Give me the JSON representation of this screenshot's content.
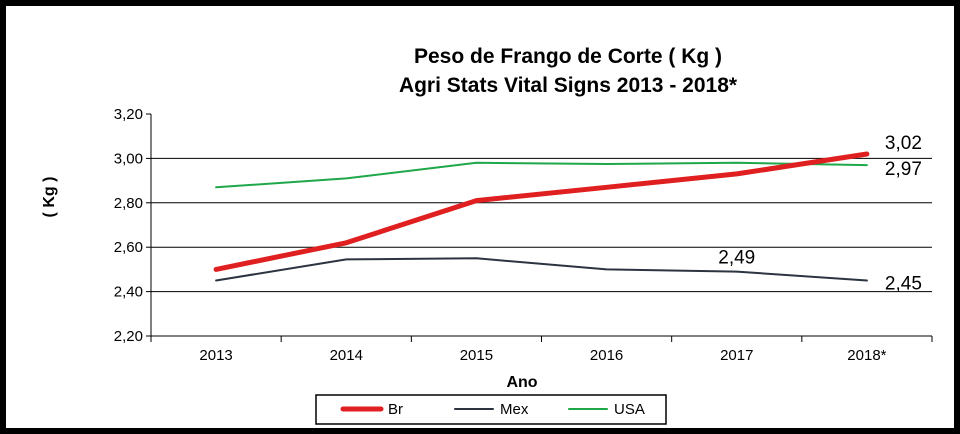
{
  "chart_data": {
    "type": "line",
    "title": "Peso de Frango de Corte ( Kg )",
    "subtitle": "Agri Stats Vital Signs 2013 - 2018*",
    "xlabel": "Ano",
    "ylabel": "( Kg )",
    "categories": [
      "2013",
      "2014",
      "2015",
      "2016",
      "2017",
      "2018*"
    ],
    "ylim": [
      2.2,
      3.2
    ],
    "yticks": [
      "2,20",
      "2,40",
      "2,60",
      "2,80",
      "3,00",
      "3,20"
    ],
    "ytick_values": [
      2.2,
      2.4,
      2.6,
      2.8,
      3.0,
      3.2
    ],
    "grid": "horizontal",
    "legend": "bottom",
    "series": [
      {
        "name": "Br",
        "color": "#e02020",
        "values": [
          2.5,
          2.62,
          2.81,
          2.87,
          2.93,
          3.02
        ]
      },
      {
        "name": "Mex",
        "color": "#2b3440",
        "values": [
          2.45,
          2.545,
          2.55,
          2.5,
          2.49,
          2.45
        ]
      },
      {
        "name": "USA",
        "color": "#1fa84a",
        "values": [
          2.87,
          2.91,
          2.98,
          2.975,
          2.98,
          2.97
        ]
      }
    ],
    "annotations": [
      {
        "text": "3,02",
        "series": "Br",
        "category": "2018*",
        "value": 3.02
      },
      {
        "text": "2,97",
        "series": "USA",
        "category": "2018*",
        "value": 2.97
      },
      {
        "text": "2,49",
        "series": "Mex",
        "category": "2017",
        "value": 2.49
      },
      {
        "text": "2,45",
        "series": "Mex",
        "category": "2018*",
        "value": 2.45
      }
    ]
  }
}
